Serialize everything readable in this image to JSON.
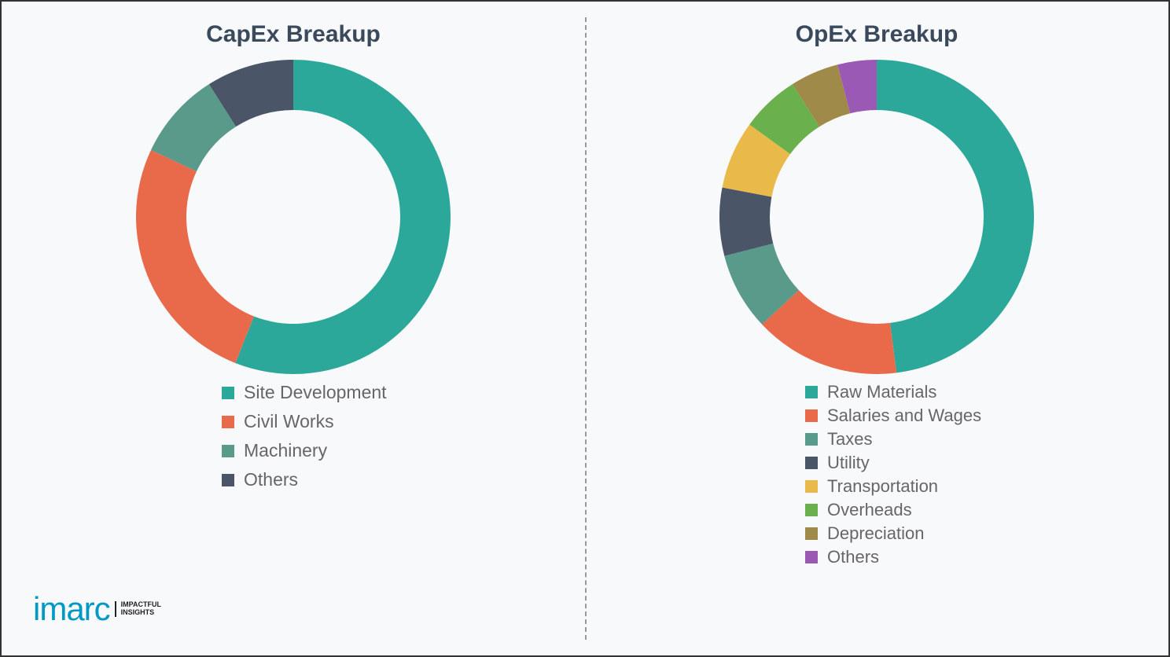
{
  "logo": {
    "brand": "imarc",
    "tag1": "IMPACTFUL",
    "tag2": "INSIGHTS"
  },
  "capex": {
    "title": "CapEx Breakup",
    "type": "donut",
    "size": 400,
    "inner_ratio": 0.68,
    "background_color": "#ffffff",
    "legend_fontsize": 23,
    "legend_color": "#666666",
    "title_fontsize": 30,
    "title_color": "#3a4a5c",
    "segments": [
      {
        "label": "Site Development",
        "value": 56,
        "color": "#2ca89a"
      },
      {
        "label": "Civil Works",
        "value": 26,
        "color": "#e96a4a"
      },
      {
        "label": "Machinery",
        "value": 9,
        "color": "#5a9a8a"
      },
      {
        "label": "Others",
        "value": 9,
        "color": "#4a5568"
      }
    ]
  },
  "opex": {
    "title": "OpEx Breakup",
    "type": "donut",
    "size": 400,
    "inner_ratio": 0.68,
    "background_color": "#ffffff",
    "legend_fontsize": 22,
    "legend_color": "#666666",
    "title_fontsize": 30,
    "title_color": "#3a4a5c",
    "segments": [
      {
        "label": "Raw Materials",
        "value": 48,
        "color": "#2ca89a"
      },
      {
        "label": "Salaries and Wages",
        "value": 15,
        "color": "#e96a4a"
      },
      {
        "label": "Taxes",
        "value": 8,
        "color": "#5a9a8a"
      },
      {
        "label": "Utility",
        "value": 7,
        "color": "#4a5568"
      },
      {
        "label": "Transportation",
        "value": 7,
        "color": "#e9b949"
      },
      {
        "label": "Overheads",
        "value": 6,
        "color": "#6ab04c"
      },
      {
        "label": "Depreciation",
        "value": 5,
        "color": "#a08a4a"
      },
      {
        "label": "Others",
        "value": 4,
        "color": "#9b59b6"
      }
    ]
  }
}
